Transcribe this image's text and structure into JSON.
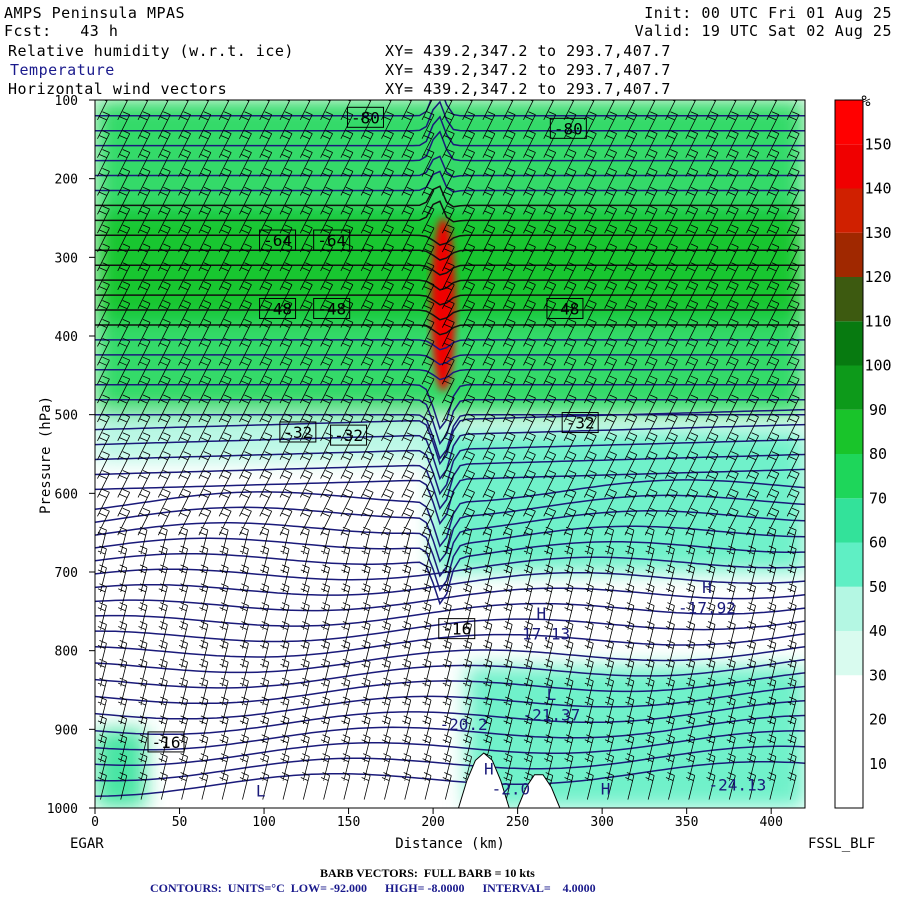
{
  "header": {
    "model": "AMPS Peninsula MPAS",
    "forecast": "Fcst:   43 h",
    "init": "Init: 00 UTC Fri 01 Aug 25",
    "valid": "Valid: 19 UTC Sat 02 Aug 25",
    "fields": [
      {
        "name": "Relative humidity (w.r.t. ice)",
        "xy": "XY= 439.2,347.2 to 293.7,407.7"
      },
      {
        "name": "Temperature",
        "xy": "XY= 439.2,347.2 to 293.7,407.7"
      },
      {
        "name": "Horizontal wind vectors",
        "xy": "XY= 439.2,347.2 to 293.7,407.7"
      }
    ]
  },
  "footer": {
    "left_station": "EGAR",
    "right_station": "FSSL_BLF",
    "barb": "BARB VECTORS:  FULL BARB = 10 kts",
    "contours": "CONTOURS:  UNITS=°C  LOW= -92.000      HIGH= -8.0000      INTERVAL=    4.0000"
  },
  "colors": {
    "temperature_contour": "#1a1a7a",
    "rh_scale": [
      "#ffffff",
      "#ffffff",
      "#ffffff",
      "#d9fbef",
      "#b4f7e3",
      "#5fefc4",
      "#33e29a",
      "#1ed65a",
      "#19c42a",
      "#0d9a1a",
      "#077a10",
      "#3d5a10",
      "#a02800",
      "#d02000",
      "#f00000",
      "#ff0000"
    ]
  },
  "chart_data": {
    "type": "heatmap",
    "title": "Relative humidity (w.r.t. ice)",
    "xlabel": "Distance (km)",
    "ylabel": "Pressure (hPa)",
    "xlim": [
      0,
      420
    ],
    "ylim": [
      1000,
      100
    ],
    "x_ticks": [
      0,
      50,
      100,
      150,
      200,
      250,
      300,
      350,
      400
    ],
    "y_ticks": [
      100,
      200,
      300,
      400,
      500,
      600,
      700,
      800,
      900,
      1000
    ],
    "colorbar": {
      "unit": "%",
      "levels": [
        10,
        20,
        30,
        40,
        50,
        60,
        70,
        80,
        90,
        100,
        110,
        120,
        130,
        140,
        150
      ]
    },
    "rh_regions": [
      {
        "x": [
          0,
          420
        ],
        "p": [
          100,
          500
        ],
        "rh": 75
      },
      {
        "x": [
          0,
          420
        ],
        "p": [
          240,
          380
        ],
        "rh": 88
      },
      {
        "x": [
          0,
          200
        ],
        "p": [
          500,
          560
        ],
        "rh": 45
      },
      {
        "x": [
          200,
          420
        ],
        "p": [
          520,
          700
        ],
        "rh": 50
      },
      {
        "x": [
          200,
          212
        ],
        "p": [
          250,
          470
        ],
        "rh": 140
      },
      {
        "x": [
          0,
          30
        ],
        "p": [
          900,
          1000
        ],
        "rh": 65
      },
      {
        "x": [
          220,
          420
        ],
        "p": [
          820,
          1000
        ],
        "rh": 55
      }
    ],
    "temperature_contours": [
      {
        "value": -80,
        "label": "-80",
        "p": 155
      },
      {
        "value": -64,
        "label": "-64",
        "p": 275
      },
      {
        "value": -48,
        "label": "-48",
        "p": 365
      },
      {
        "value": -32,
        "label": "-32",
        "p": 520
      },
      {
        "value": -16,
        "label": "-16",
        "p": 860
      }
    ],
    "annotations": [
      {
        "text": "-80",
        "x": 160,
        "p": 122
      },
      {
        "text": "-80",
        "x": 280,
        "p": 136
      },
      {
        "text": "-64",
        "x": 108,
        "p": 278
      },
      {
        "text": "-64",
        "x": 140,
        "p": 278
      },
      {
        "text": "-48",
        "x": 108,
        "p": 365
      },
      {
        "text": "-48",
        "x": 140,
        "p": 365
      },
      {
        "text": "-48",
        "x": 278,
        "p": 365
      },
      {
        "text": "-32",
        "x": 120,
        "p": 522
      },
      {
        "text": "-32",
        "x": 150,
        "p": 526
      },
      {
        "text": "-32",
        "x": 287,
        "p": 510
      },
      {
        "text": "-16",
        "x": 214,
        "p": 772
      },
      {
        "text": "-16",
        "x": 42,
        "p": 916
      },
      {
        "text": "H",
        "x": 362,
        "p": 719
      },
      {
        "text": "-17.92",
        "x": 362,
        "p": 745
      },
      {
        "text": "H",
        "x": 264,
        "p": 752
      },
      {
        "text": "-17.13",
        "x": 264,
        "p": 778
      },
      {
        "text": "L",
        "x": 270,
        "p": 855
      },
      {
        "text": "-21.37",
        "x": 270,
        "p": 881
      },
      {
        "text": "-20.2",
        "x": 218,
        "p": 893
      },
      {
        "text": "H",
        "x": 233,
        "p": 950
      },
      {
        "text": "-2.0",
        "x": 246,
        "p": 975
      },
      {
        "text": "L",
        "x": 98,
        "p": 978
      },
      {
        "text": "H",
        "x": 302,
        "p": 975
      },
      {
        "text": "-24.13",
        "x": 380,
        "p": 970
      }
    ]
  }
}
